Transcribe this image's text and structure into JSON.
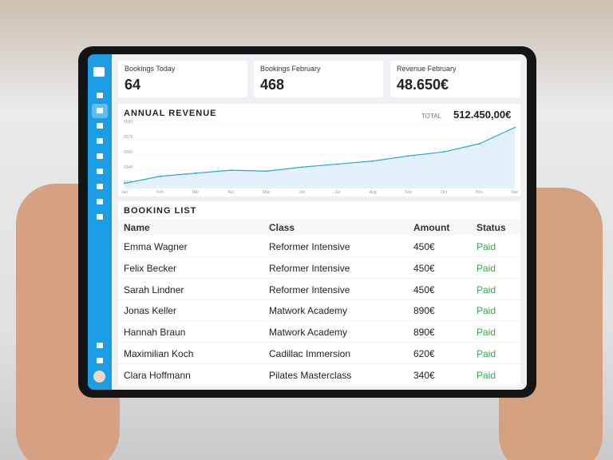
{
  "stats": [
    {
      "label": "Bookings Today",
      "value": "64"
    },
    {
      "label": "Bookings February",
      "value": "468"
    },
    {
      "label": "Revenue February",
      "value": "48.650€"
    }
  ],
  "annual_revenue": {
    "title": "ANNUAL REVENUE",
    "total_label": "TOTAL",
    "total": "512.450,00€",
    "chart": {
      "type": "line",
      "categories": [
        "Jan",
        "Feb",
        "Mar",
        "Apr",
        "May",
        "Jun",
        "Jul",
        "Aug",
        "Sep",
        "Oct",
        "Nov",
        "Dec"
      ],
      "values": [
        632,
        639,
        642,
        645,
        644,
        648,
        651,
        654,
        659,
        663,
        671,
        687
      ],
      "color": "#29a8d8",
      "ylim": [
        627,
        693
      ],
      "yticks": [
        {
          "value": 630,
          "label": "€630"
        },
        {
          "value": 645,
          "label": "€645"
        },
        {
          "value": 660,
          "label": "€660"
        },
        {
          "value": 675,
          "label": "€675"
        },
        {
          "value": 690,
          "label": "€690"
        }
      ],
      "grid": true
    }
  },
  "booking_list": {
    "title": "BOOKING LIST",
    "columns": [
      "Name",
      "Class",
      "Amount",
      "Status"
    ],
    "rows": [
      [
        "Emma Wagner",
        "Reformer Intensive",
        "450€",
        "Paid"
      ],
      [
        "Felix Becker",
        "Reformer Intensive",
        "450€",
        "Paid"
      ],
      [
        "Sarah Lindner",
        "Reformer Intensive",
        "450€",
        "Paid"
      ],
      [
        "Jonas Keller",
        "Matwork Academy",
        "890€",
        "Paid"
      ],
      [
        "Hannah Braun",
        "Matwork Academy",
        "890€",
        "Paid"
      ],
      [
        "Maximilian Koch",
        "Cadillac Immersion",
        "620€",
        "Paid"
      ],
      [
        "Clara Hoffmann",
        "Pilates Masterclass",
        "340€",
        "Paid"
      ]
    ]
  }
}
